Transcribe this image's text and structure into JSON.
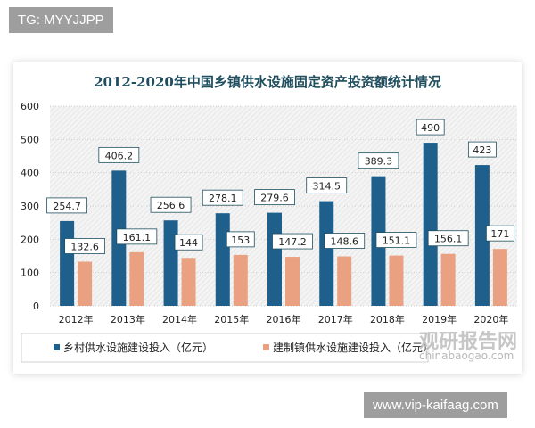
{
  "tag_top": "TG: MYYJJPP",
  "tag_bottom": "www.vip-kaifaag.com",
  "watermark": "观研报告网",
  "watermark_url": "chinabaogao.com",
  "chart_data": {
    "type": "bar",
    "title": "2012-2020年中国乡镇供水设施固定资产投资额统计情况",
    "categories": [
      "2012年",
      "2013年",
      "2014年",
      "2015年",
      "2016年",
      "2017年",
      "2018年",
      "2019年",
      "2020年"
    ],
    "series": [
      {
        "name": "乡村供水设施建设投入（亿元）",
        "color": "#1f5f8b",
        "values": [
          254.7,
          406.2,
          256.6,
          278.1,
          279.6,
          314.5,
          389.3,
          490,
          423
        ]
      },
      {
        "name": "建制镇供水设施建设投入（亿元）",
        "color": "#e9a181",
        "values": [
          132.6,
          161.1,
          144,
          153,
          147.2,
          148.6,
          151.1,
          156.1,
          171
        ]
      }
    ],
    "ylim": [
      0,
      600
    ],
    "yticks": [
      0,
      100,
      200,
      300,
      400,
      500,
      600
    ],
    "grid": true,
    "legend": "bottom",
    "data_labels": true
  }
}
